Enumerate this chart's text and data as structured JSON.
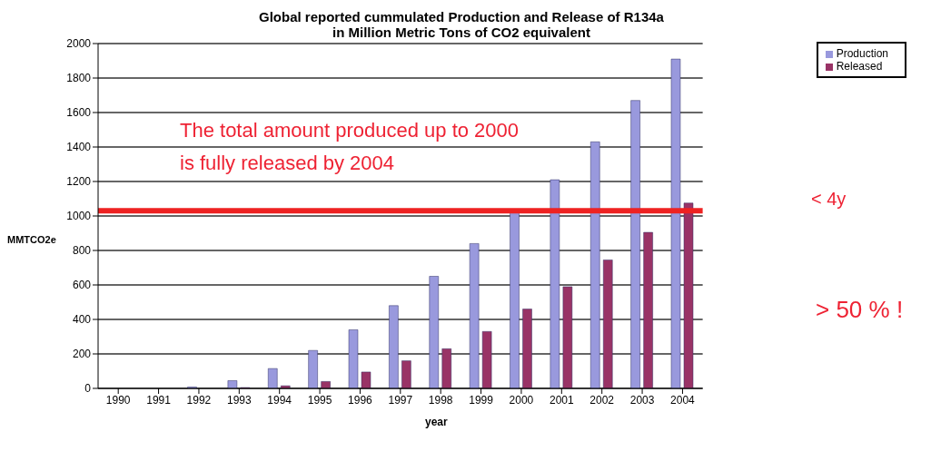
{
  "chart_data": {
    "type": "bar",
    "title": "Global reported cummulated Production and Release of R134a\nin Million Metric Tons of CO2 equivalent",
    "xlabel": "year",
    "ylabel": "MMTCO2e",
    "categories": [
      "1990",
      "1991",
      "1992",
      "1993",
      "1994",
      "1995",
      "1996",
      "1997",
      "1998",
      "1999",
      "2000",
      "2001",
      "2002",
      "2003",
      "2004"
    ],
    "series": [
      {
        "name": "Production",
        "color": "#9999dd",
        "values": [
          null,
          null,
          8,
          45,
          115,
          220,
          340,
          480,
          650,
          840,
          1030,
          1210,
          1430,
          1670,
          1910
        ]
      },
      {
        "name": "Released",
        "color": "#993366",
        "values": [
          0,
          0,
          null,
          5,
          15,
          40,
          95,
          160,
          230,
          330,
          460,
          590,
          745,
          905,
          1075
        ]
      }
    ],
    "ylim": [
      0,
      2000
    ],
    "yticks": [
      0,
      200,
      400,
      600,
      800,
      1000,
      1200,
      1400,
      1600,
      1800,
      2000
    ],
    "grid": "y",
    "legend": "top right",
    "ref_lines": [
      {
        "axis": "y",
        "value": 1030,
        "color": "#ee2222"
      }
    ],
    "annotations": [
      "The total amount produced up to 2000\nis fully released  by 2004",
      "< 4y",
      "> 50 % !"
    ]
  }
}
